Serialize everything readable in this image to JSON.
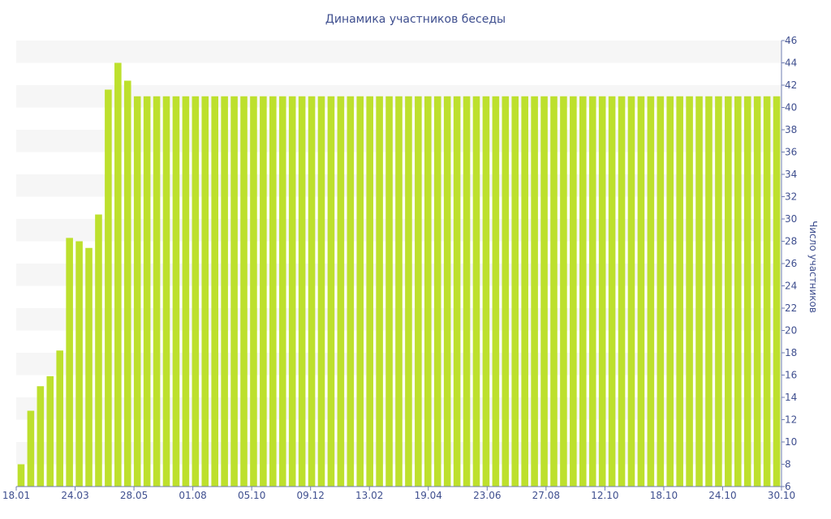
{
  "chart_data": {
    "type": "bar",
    "title": "Динамика участников беседы",
    "ylabel": "Число участников",
    "xlabel": "",
    "ylim": [
      6,
      46
    ],
    "yticks": [
      6,
      8,
      10,
      12,
      14,
      16,
      18,
      20,
      22,
      24,
      26,
      28,
      30,
      32,
      34,
      36,
      38,
      40,
      42,
      44,
      46
    ],
    "x_tick_labels": [
      "18.01",
      "24.03",
      "28.05",
      "01.08",
      "05.10",
      "09.12",
      "13.02",
      "19.04",
      "23.06",
      "27.08",
      "12.10",
      "18.10",
      "24.10",
      "30.10"
    ],
    "bar_color": "#bde02d",
    "grid": "horizontal bands",
    "legend": "none",
    "values": [
      8,
      12.8,
      15,
      15.9,
      18.2,
      28.3,
      28,
      27.4,
      30.4,
      41.6,
      44,
      42.4,
      41,
      41,
      41,
      41,
      41,
      41,
      41,
      41,
      41,
      41,
      41,
      41,
      41,
      41,
      41,
      41,
      41,
      41,
      41,
      41,
      41,
      41,
      41,
      41,
      41,
      41,
      41,
      41,
      41,
      41,
      41,
      41,
      41,
      41,
      41,
      41,
      41,
      41,
      41,
      41,
      41,
      41,
      41,
      41,
      41,
      41,
      41,
      41,
      41,
      41,
      41,
      41,
      41,
      41,
      41,
      41,
      41,
      41,
      41,
      41,
      41,
      41,
      41,
      41,
      41,
      41,
      41
    ]
  }
}
